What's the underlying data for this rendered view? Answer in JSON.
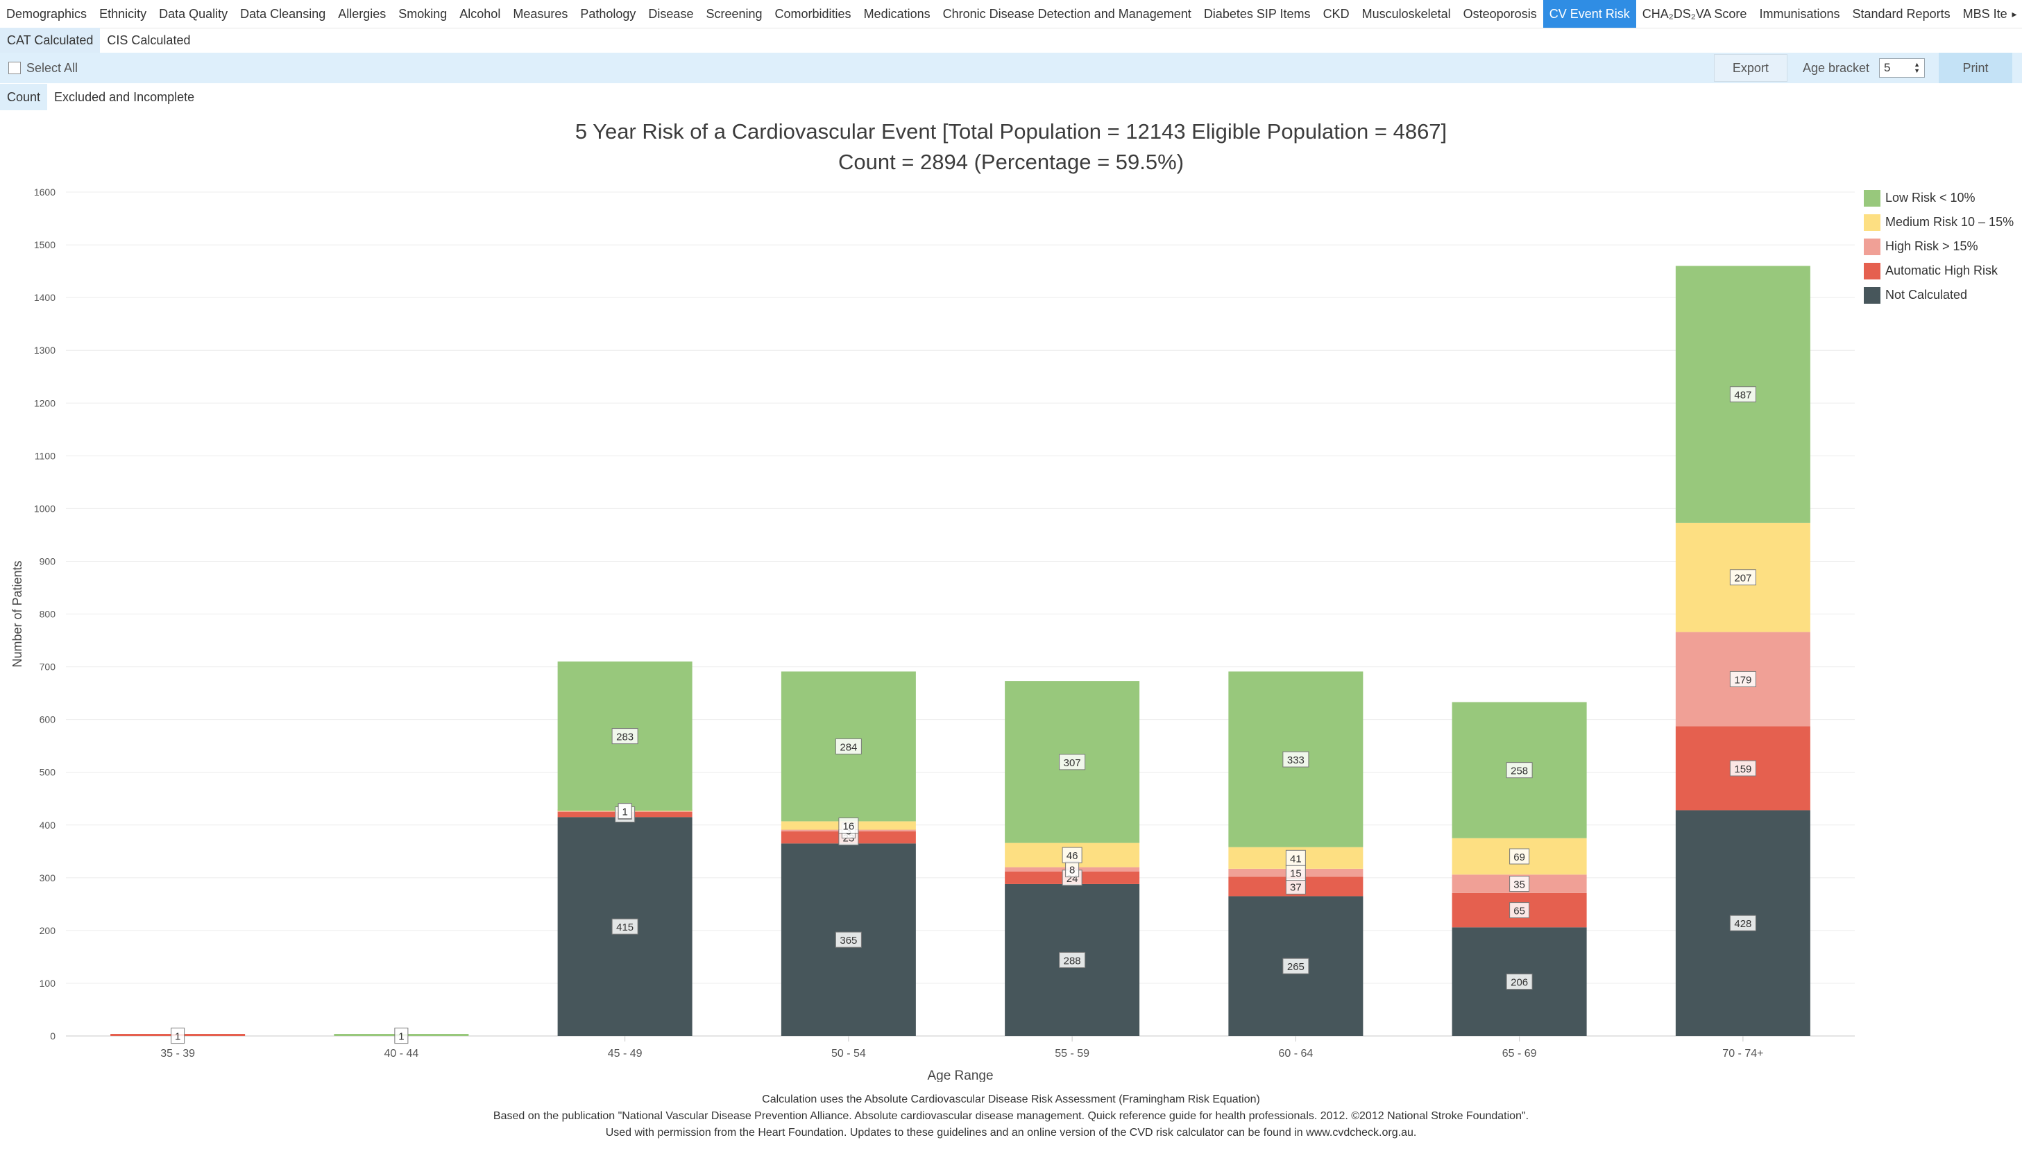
{
  "tabs": [
    {
      "label": "Demographics"
    },
    {
      "label": "Ethnicity"
    },
    {
      "label": "Data Quality"
    },
    {
      "label": "Data Cleansing"
    },
    {
      "label": "Allergies"
    },
    {
      "label": "Smoking"
    },
    {
      "label": "Alcohol"
    },
    {
      "label": "Measures"
    },
    {
      "label": "Pathology"
    },
    {
      "label": "Disease"
    },
    {
      "label": "Screening"
    },
    {
      "label": "Comorbidities"
    },
    {
      "label": "Medications"
    },
    {
      "label": "Chronic Disease Detection and Management"
    },
    {
      "label": "Diabetes SIP Items"
    },
    {
      "label": "CKD"
    },
    {
      "label": "Musculoskeletal"
    },
    {
      "label": "Osteoporosis"
    },
    {
      "label": "CV Event Risk",
      "active": true
    },
    {
      "label": "CHA₂DS₂VA Score"
    },
    {
      "label": "Immunisations"
    },
    {
      "label": "Standard Reports"
    },
    {
      "label": "MBS Iter"
    }
  ],
  "tab_scroll_icon": "▸",
  "subtabs": [
    {
      "label": "CAT Calculated",
      "active": true
    },
    {
      "label": "CIS Calculated"
    }
  ],
  "toolbar": {
    "select_all_label": "Select All",
    "select_all_checked": false,
    "export_label": "Export",
    "age_bracket_label": "Age bracket",
    "age_bracket_value": "5",
    "spin_up_icon": "▲",
    "spin_down_icon": "▼",
    "print_label": "Print"
  },
  "view_tabs": [
    {
      "label": "Count",
      "active": true
    },
    {
      "label": "Excluded and Incomplete"
    }
  ],
  "chart_title_line1": "5 Year Risk of a Cardiovascular Event [Total Population = 12143 Eligible Population = 4867]",
  "chart_title_line2": "Count = 2894  (Percentage = 59.5%)",
  "footnotes": {
    "line1": "Calculation uses the Absolute Cardiovascular Disease Risk Assessment (Framingham Risk Equation)",
    "line2": "Based on the publication \"National Vascular Disease Prevention Alliance. Absolute cardiovascular disease management. Quick reference guide for health professionals. 2012. ©2012 National Stroke Foundation\".",
    "line3": "Used with permission from the Heart Foundation. Updates to these guidelines and an online version of the CVD risk calculator can be found in www.cvdcheck.org.au."
  },
  "chart_data": {
    "type": "bar",
    "stacked": true,
    "title": "5 Year Risk of a Cardiovascular Event [Total Population = 12143 Eligible Population = 4867]",
    "subtitle": "Count = 2894  (Percentage = 59.5%)",
    "xlabel": "Age Range",
    "ylabel": "Number of Patients",
    "ylim": [
      0,
      1600
    ],
    "yticks": [
      0,
      100,
      200,
      300,
      400,
      500,
      600,
      700,
      800,
      900,
      1000,
      1100,
      1200,
      1300,
      1400,
      1500,
      1600
    ],
    "grid": true,
    "legend_position": "right",
    "categories": [
      "35 - 39",
      "40 - 44",
      "45 - 49",
      "50 - 54",
      "55 - 59",
      "60 - 64",
      "65 - 69",
      "70 - 74+"
    ],
    "series": [
      {
        "name": "Not Calculated",
        "color": "#47565b",
        "values": [
          0,
          0,
          415,
          365,
          288,
          265,
          206,
          428
        ]
      },
      {
        "name": "Automatic High Risk",
        "color": "#e5604f",
        "values": [
          1,
          0,
          10,
          23,
          24,
          37,
          65,
          159
        ]
      },
      {
        "name": "High Risk > 15%",
        "color": "#f0a096",
        "values": [
          0,
          0,
          1,
          3,
          8,
          15,
          35,
          179
        ]
      },
      {
        "name": "Medium Risk 10 – 15%",
        "color": "#fddf82",
        "values": [
          0,
          0,
          1,
          16,
          46,
          41,
          69,
          207
        ]
      },
      {
        "name": "Low Risk < 10%",
        "color": "#98c87c",
        "values": [
          0,
          1,
          283,
          284,
          307,
          333,
          258,
          487
        ]
      }
    ],
    "legend_order": [
      "Low Risk < 10%",
      "Medium Risk 10 – 15%",
      "High Risk > 15%",
      "Automatic High Risk",
      "Not Calculated"
    ]
  }
}
